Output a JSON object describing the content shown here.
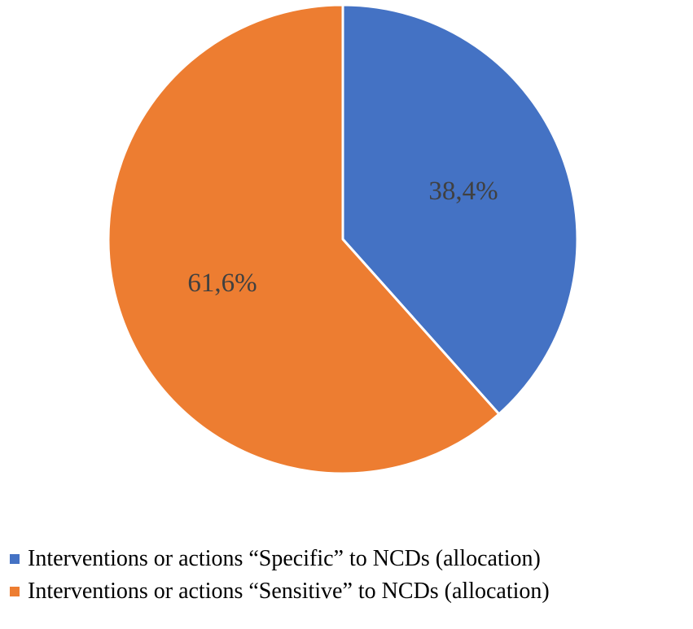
{
  "chart_data": {
    "type": "pie",
    "title": "",
    "slices": [
      {
        "label": "Interventions or actions “Specific” to NCDs (allocation)",
        "value": 38.4,
        "display": "38,4%",
        "color": "#4472C4"
      },
      {
        "label": "Interventions or actions “Sensitive” to NCDs (allocation)",
        "value": 61.6,
        "display": "61,6%",
        "color": "#ED7D31"
      }
    ],
    "legend_placement": "bottom",
    "start": "top",
    "direction": "clockwise"
  }
}
